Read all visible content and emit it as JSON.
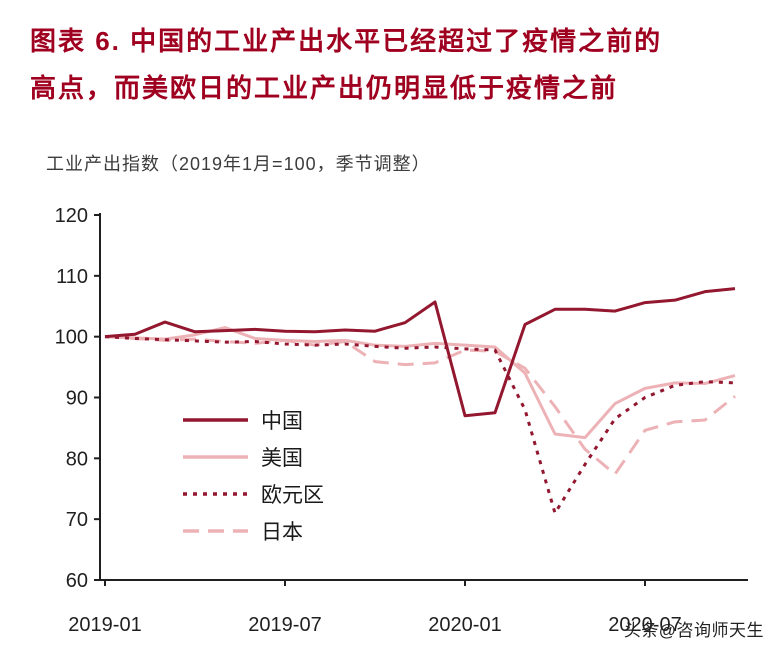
{
  "header": {
    "figure_title_lines": [
      "图表 6. 中国的工业产出水平已经超过了疫情之前的",
      "高点，而美欧日的工业产出仍明显低于疫情之前"
    ]
  },
  "watermark": "头条@咨询师天生",
  "colors": {
    "title_red": "#A00020",
    "dark_red": "#92172F",
    "light_pink": "#EDB2B6",
    "axis": "#1F1F1F"
  },
  "chart_data": {
    "type": "line",
    "title": "工业产出指数（2019年1月=100，季节调整）",
    "xlabel": "",
    "ylabel": "",
    "ylim": [
      60,
      120
    ],
    "y_ticks": [
      60,
      70,
      80,
      90,
      100,
      110,
      120
    ],
    "grid": false,
    "legend_position": "inside-lower-left",
    "x": [
      "2019-01",
      "2019-02",
      "2019-03",
      "2019-04",
      "2019-05",
      "2019-06",
      "2019-07",
      "2019-08",
      "2019-09",
      "2019-10",
      "2019-11",
      "2019-12",
      "2020-01",
      "2020-02",
      "2020-03",
      "2020-04",
      "2020-05",
      "2020-06",
      "2020-07",
      "2020-08",
      "2020-09",
      "2020-10"
    ],
    "x_tick_labels": [
      "2019-01",
      "2019-07",
      "2020-01",
      "2020-07"
    ],
    "x_tick_indices": [
      0,
      6,
      12,
      18
    ],
    "series": [
      {
        "id": "china",
        "name": "中国",
        "color": "dark_red",
        "style": "solid",
        "values": [
          100,
          100.4,
          102.4,
          100.8,
          101,
          101.2,
          100.9,
          100.8,
          101.1,
          100.9,
          102.3,
          105.7,
          87,
          87.5,
          102,
          104.5,
          104.5,
          104.2,
          105.6,
          106,
          107.4,
          107.9
        ]
      },
      {
        "id": "us",
        "name": "美国",
        "color": "light_pink",
        "style": "solid",
        "values": [
          100,
          99.8,
          99.6,
          100.3,
          101.5,
          99.7,
          99.4,
          99.2,
          99.4,
          98.6,
          98.4,
          98.9,
          98.6,
          98.3,
          94,
          84,
          83.4,
          89,
          91.5,
          92.4,
          92.3,
          93.6
        ]
      },
      {
        "id": "eurozone",
        "name": "欧元区",
        "color": "dark_red",
        "style": "dashed-short",
        "values": [
          100,
          99.7,
          99.5,
          99.3,
          99.1,
          99.2,
          98.8,
          98.6,
          98.8,
          98.4,
          98.1,
          98.3,
          98,
          97.8,
          88,
          71,
          79,
          86.5,
          90,
          92,
          92.6,
          92.4
        ]
      },
      {
        "id": "japan",
        "name": "日本",
        "color": "light_pink",
        "style": "dashed-long",
        "values": [
          100,
          99.7,
          99.4,
          99.6,
          99.2,
          98.9,
          99.4,
          98.6,
          99.2,
          95.9,
          95.4,
          95.7,
          97.8,
          97.6,
          94.8,
          88.5,
          81.5,
          77.4,
          84.6,
          86,
          86.3,
          90.2
        ]
      }
    ]
  }
}
